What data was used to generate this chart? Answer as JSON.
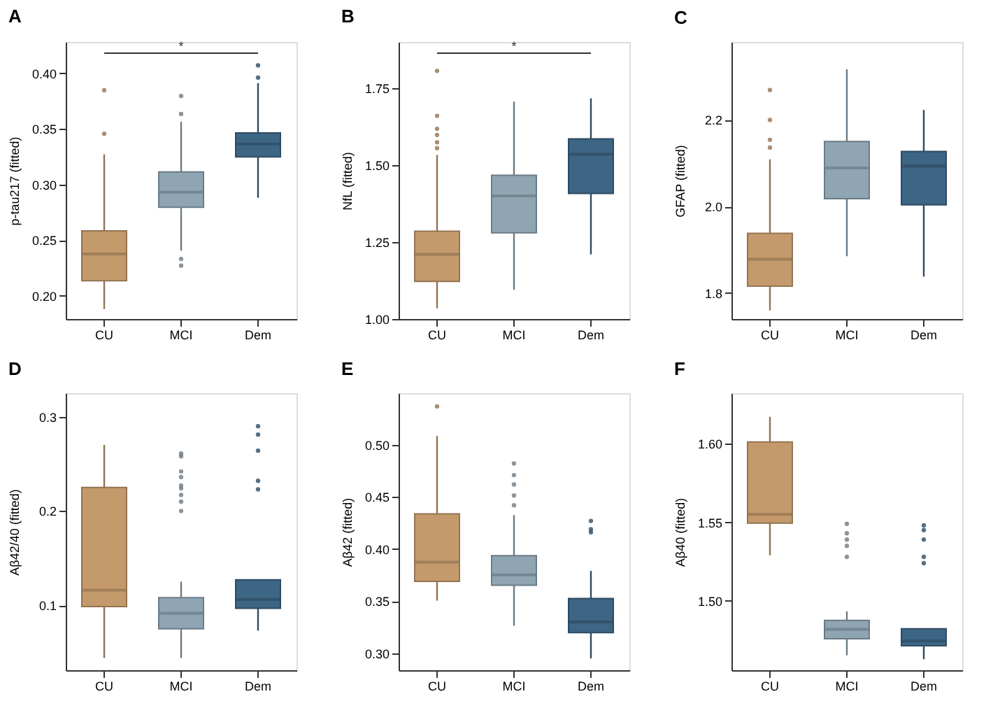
{
  "chart_data": [
    {
      "type": "box",
      "title": "A",
      "ylabel": "p-tau217 (fitted)",
      "categories": [
        "CU",
        "MCI",
        "Dem"
      ],
      "colors": [
        "#c49a6c",
        "#8fa5b3",
        "#3d6584"
      ],
      "ylim": [
        0.179,
        0.428
      ],
      "yticks": [
        {
          "value": 0.2,
          "label": "0.20"
        },
        0.25,
        {
          "value": 0.3,
          "label": "0.30"
        },
        0.35,
        {
          "value": 0.4,
          "label": "0.40"
        }
      ],
      "annotations": [
        "*"
      ],
      "grid": false,
      "boxes": [
        {
          "low": 0.188,
          "q1": 0.2135,
          "median": 0.2375,
          "q3": 0.2583,
          "high": 0.327,
          "outliers": [
            0.3455,
            0.3846
          ]
        },
        {
          "low": 0.2405,
          "q1": 0.2795,
          "median": 0.293,
          "q3": 0.3112,
          "high": 0.3564,
          "outliers": [
            0.233,
            0.227,
            0.3633,
            0.3795
          ]
        },
        {
          "low": 0.288,
          "q1": 0.3247,
          "median": 0.3363,
          "q3": 0.3463,
          "high": 0.391,
          "outliers": [
            0.396,
            0.407
          ]
        }
      ]
    },
    {
      "type": "box",
      "title": "B",
      "ylabel": "NfL (fitted)",
      "categories": [
        "CU",
        "MCI",
        "Dem"
      ],
      "colors": [
        "#c49a6c",
        "#8fa5b3",
        "#3d6584"
      ],
      "ylim": [
        1.0,
        1.9
      ],
      "yticks": [
        {
          "value": 1.0,
          "label": "1.00"
        },
        1.25,
        {
          "value": 1.5,
          "label": "1.50"
        },
        1.75
      ],
      "annotations": [
        "*"
      ],
      "grid": false,
      "boxes": [
        {
          "low": 1.035,
          "q1": 1.122,
          "median": 1.21,
          "q3": 1.285,
          "high": 1.533,
          "outliers": [
            1.555,
            1.574,
            1.598,
            1.618,
            1.66,
            1.806
          ]
        },
        {
          "low": 1.095,
          "q1": 1.28,
          "median": 1.4,
          "q3": 1.467,
          "high": 1.706
        },
        {
          "low": 1.21,
          "q1": 1.408,
          "median": 1.535,
          "q3": 1.585,
          "high": 1.717
        }
      ]
    },
    {
      "type": "box",
      "title": "C",
      "ylabel": "GFAP (fitted)",
      "categories": [
        "CU",
        "MCI",
        "Dem"
      ],
      "colors": [
        "#c49a6c",
        "#8fa5b3",
        "#3d6584"
      ],
      "ylim": [
        1.74,
        2.38
      ],
      "yticks": [
        1.8,
        {
          "value": 2.0,
          "label": "2.0"
        },
        2.2
      ],
      "grid": false,
      "boxes": [
        {
          "low": 1.76,
          "q1": 1.816,
          "median": 1.878,
          "q3": 1.938,
          "high": 2.109,
          "outliers": [
            2.136,
            2.154,
            2.2,
            2.269
          ]
        },
        {
          "low": 1.885,
          "q1": 2.018,
          "median": 2.089,
          "q3": 2.15,
          "high": 2.317
        },
        {
          "low": 1.838,
          "q1": 2.004,
          "median": 2.093,
          "q3": 2.127,
          "high": 2.223
        }
      ]
    },
    {
      "type": "box",
      "title": "D",
      "ylabel": "Aβ42/40 (fitted)",
      "categories": [
        "CU",
        "MCI",
        "Dem"
      ],
      "colors": [
        "#c49a6c",
        "#8fa5b3",
        "#3d6584"
      ],
      "ylim": [
        0.031,
        0.325
      ],
      "yticks": [
        0.1,
        0.2,
        0.3
      ],
      "grid": false,
      "boxes": [
        {
          "low": 0.044,
          "q1": 0.0986,
          "median": 0.116,
          "q3": 0.225,
          "high": 0.27
        },
        {
          "low": 0.044,
          "q1": 0.075,
          "median": 0.0915,
          "q3": 0.108,
          "high": 0.125,
          "outliers": [
            0.2,
            0.21,
            0.217,
            0.224,
            0.227,
            0.236,
            0.242,
            0.258,
            0.261
          ]
        },
        {
          "low": 0.073,
          "q1": 0.0967,
          "median": 0.106,
          "q3": 0.127,
          "high": 0.127,
          "outliers": [
            0.223,
            0.232,
            0.264,
            0.281,
            0.29
          ]
        }
      ]
    },
    {
      "type": "box",
      "title": "E",
      "ylabel": "Aβ42 (fitted)",
      "categories": [
        "CU",
        "MCI",
        "Dem"
      ],
      "colors": [
        "#c49a6c",
        "#8fa5b3",
        "#3d6584"
      ],
      "ylim": [
        0.2836,
        0.5497
      ],
      "yticks": [
        {
          "value": 0.3,
          "label": "0.30"
        },
        0.35,
        {
          "value": 0.4,
          "label": "0.40"
        },
        0.45,
        {
          "value": 0.5,
          "label": "0.50"
        }
      ],
      "grid": false,
      "boxes": [
        {
          "low": 0.3504,
          "q1": 0.3689,
          "median": 0.3874,
          "q3": 0.4338,
          "high": 0.5086,
          "outliers": [
            0.537
          ]
        },
        {
          "low": 0.3263,
          "q1": 0.3653,
          "median": 0.3751,
          "q3": 0.3936,
          "high": 0.4326,
          "outliers": [
            0.442,
            0.4515,
            0.462,
            0.471,
            0.4822
          ]
        },
        {
          "low": 0.295,
          "q1": 0.3197,
          "median": 0.33,
          "q3": 0.3525,
          "high": 0.379,
          "outliers": [
            0.416,
            0.419,
            0.427
          ]
        }
      ]
    },
    {
      "type": "box",
      "title": "F",
      "ylabel": "Aβ40 (fitted)",
      "categories": [
        "CU",
        "MCI",
        "Dem"
      ],
      "colors": [
        "#c49a6c",
        "#8fa5b3",
        "#3d6584"
      ],
      "ylim": [
        1.456,
        1.632
      ],
      "yticks": [
        {
          "value": 1.5,
          "label": "1.50"
        },
        1.55,
        {
          "value": 1.6,
          "label": "1.60"
        }
      ],
      "grid": false,
      "boxes": [
        {
          "low": 1.529,
          "q1": 1.5495,
          "median": 1.555,
          "q3": 1.601,
          "high": 1.617
        },
        {
          "low": 1.4655,
          "q1": 1.476,
          "median": 1.482,
          "q3": 1.4877,
          "high": 1.4934,
          "outliers": [
            1.528,
            1.535,
            1.539,
            1.543,
            1.549
          ]
        },
        {
          "low": 1.463,
          "q1": 1.4716,
          "median": 1.4746,
          "q3": 1.4823,
          "high": 1.4823,
          "outliers": [
            1.524,
            1.528,
            1.539,
            1.545,
            1.548
          ]
        }
      ]
    }
  ]
}
